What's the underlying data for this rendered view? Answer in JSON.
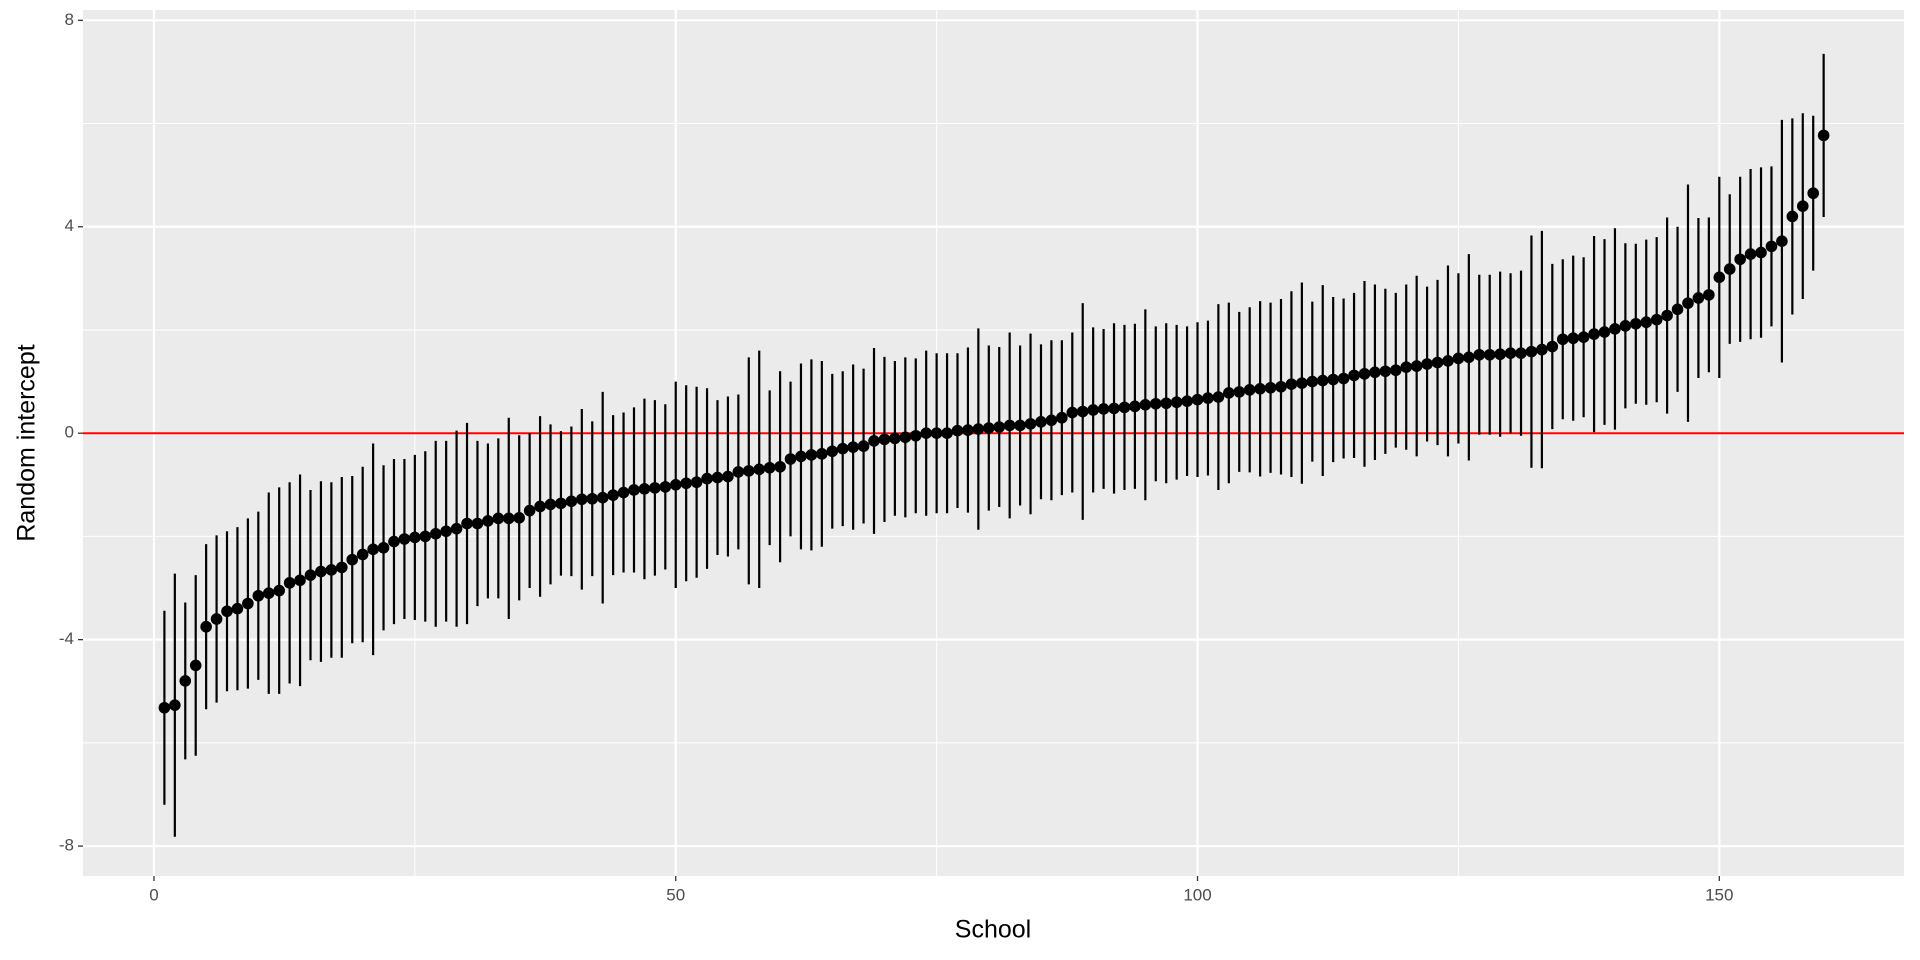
{
  "chart_data": {
    "type": "errorbar",
    "xlabel": "School",
    "ylabel": "Random intercept",
    "x": [
      1,
      2,
      3,
      4,
      5,
      6,
      7,
      8,
      9,
      10,
      11,
      12,
      13,
      14,
      15,
      16,
      17,
      18,
      19,
      20,
      21,
      22,
      23,
      24,
      25,
      26,
      27,
      28,
      29,
      30,
      31,
      32,
      33,
      34,
      35,
      36,
      37,
      38,
      39,
      40,
      41,
      42,
      43,
      44,
      45,
      46,
      47,
      48,
      49,
      50,
      51,
      52,
      53,
      54,
      55,
      56,
      57,
      58,
      59,
      60,
      61,
      62,
      63,
      64,
      65,
      66,
      67,
      68,
      69,
      70,
      71,
      72,
      73,
      74,
      75,
      76,
      77,
      78,
      79,
      80,
      81,
      82,
      83,
      84,
      85,
      86,
      87,
      88,
      89,
      90,
      91,
      92,
      93,
      94,
      95,
      96,
      97,
      98,
      99,
      100,
      101,
      102,
      103,
      104,
      105,
      106,
      107,
      108,
      109,
      110,
      111,
      112,
      113,
      114,
      115,
      116,
      117,
      118,
      119,
      120,
      121,
      122,
      123,
      124,
      125,
      126,
      127,
      128,
      129,
      130,
      131,
      132,
      133,
      134,
      135,
      136,
      137,
      138,
      139,
      140,
      141,
      142,
      143,
      144,
      145,
      146,
      147,
      148,
      149,
      150,
      151,
      152,
      153,
      154,
      155,
      156,
      157,
      158,
      159,
      160
    ],
    "values": [
      -5.32,
      -5.27,
      -4.8,
      -4.5,
      -3.75,
      -3.6,
      -3.45,
      -3.4,
      -3.3,
      -3.15,
      -3.1,
      -3.05,
      -2.9,
      -2.85,
      -2.75,
      -2.68,
      -2.65,
      -2.6,
      -2.45,
      -2.35,
      -2.25,
      -2.22,
      -2.1,
      -2.05,
      -2.02,
      -2.0,
      -1.95,
      -1.9,
      -1.85,
      -1.75,
      -1.75,
      -1.7,
      -1.65,
      -1.65,
      -1.64,
      -1.5,
      -1.42,
      -1.38,
      -1.36,
      -1.32,
      -1.28,
      -1.27,
      -1.25,
      -1.2,
      -1.15,
      -1.1,
      -1.08,
      -1.06,
      -1.04,
      -1.0,
      -0.97,
      -0.95,
      -0.88,
      -0.86,
      -0.84,
      -0.75,
      -0.73,
      -0.7,
      -0.67,
      -0.65,
      -0.5,
      -0.45,
      -0.42,
      -0.4,
      -0.35,
      -0.3,
      -0.27,
      -0.25,
      -0.15,
      -0.12,
      -0.1,
      -0.08,
      -0.05,
      0.0,
      0.0,
      0.0,
      0.05,
      0.06,
      0.08,
      0.1,
      0.12,
      0.15,
      0.15,
      0.18,
      0.22,
      0.25,
      0.3,
      0.4,
      0.42,
      0.45,
      0.47,
      0.48,
      0.5,
      0.52,
      0.55,
      0.57,
      0.58,
      0.6,
      0.62,
      0.65,
      0.68,
      0.7,
      0.78,
      0.8,
      0.84,
      0.86,
      0.88,
      0.9,
      0.95,
      0.97,
      1.0,
      1.02,
      1.04,
      1.06,
      1.12,
      1.15,
      1.18,
      1.2,
      1.22,
      1.28,
      1.3,
      1.34,
      1.37,
      1.4,
      1.45,
      1.47,
      1.52,
      1.52,
      1.53,
      1.55,
      1.55,
      1.58,
      1.62,
      1.68,
      1.82,
      1.84,
      1.86,
      1.92,
      1.96,
      2.02,
      2.08,
      2.12,
      2.15,
      2.2,
      2.28,
      2.4,
      2.52,
      2.62,
      2.68,
      3.02,
      3.18,
      3.37,
      3.47,
      3.5,
      3.62,
      3.72,
      4.2,
      4.4,
      4.65,
      5.77
    ],
    "errors": [
      1.88,
      2.55,
      1.52,
      1.75,
      1.6,
      1.62,
      1.55,
      1.58,
      1.65,
      1.63,
      1.95,
      2.0,
      1.95,
      2.05,
      1.65,
      1.75,
      1.7,
      1.75,
      1.62,
      1.7,
      2.05,
      1.6,
      1.6,
      1.55,
      1.6,
      1.65,
      1.8,
      1.75,
      1.9,
      1.95,
      1.6,
      1.5,
      1.55,
      1.95,
      1.6,
      1.5,
      1.75,
      1.55,
      1.4,
      1.45,
      1.75,
      1.5,
      2.05,
      1.55,
      1.55,
      1.6,
      1.75,
      1.7,
      1.6,
      2.0,
      1.9,
      1.85,
      1.75,
      1.5,
      1.55,
      1.5,
      2.2,
      2.3,
      1.5,
      1.85,
      1.5,
      1.8,
      1.85,
      1.8,
      1.5,
      1.5,
      1.6,
      1.5,
      1.8,
      1.6,
      1.5,
      1.55,
      1.5,
      1.6,
      1.55,
      1.55,
      1.5,
      1.6,
      1.95,
      1.6,
      1.55,
      1.8,
      1.55,
      1.75,
      1.5,
      1.55,
      1.5,
      1.55,
      2.1,
      1.6,
      1.55,
      1.65,
      1.6,
      1.6,
      1.85,
      1.5,
      1.55,
      1.5,
      1.45,
      1.5,
      1.5,
      1.8,
      1.75,
      1.55,
      1.6,
      1.7,
      1.65,
      1.7,
      1.8,
      1.95,
      1.55,
      1.85,
      1.6,
      1.55,
      1.6,
      1.8,
      1.7,
      1.6,
      1.5,
      1.6,
      1.75,
      1.5,
      1.6,
      1.85,
      1.65,
      2.0,
      1.55,
      1.55,
      1.6,
      1.55,
      1.6,
      2.25,
      2.3,
      1.6,
      1.55,
      1.6,
      1.55,
      1.9,
      1.8,
      1.95,
      1.6,
      1.55,
      1.6,
      1.6,
      1.9,
      1.6,
      2.3,
      1.55,
      1.5,
      1.95,
      1.45,
      1.6,
      1.65,
      1.65,
      1.55,
      2.35,
      1.9,
      1.8,
      1.5,
      1.58
    ],
    "color": "#000000",
    "xlim": [
      -6.8,
      167.7
    ],
    "ylim": [
      -8.58,
      8.2
    ],
    "xticks": [
      0,
      50,
      100,
      150
    ],
    "yticks": [
      -8,
      -4,
      0,
      4,
      8
    ],
    "x_minor_ticks": [
      25,
      75,
      125
    ],
    "y_minor_ticks": [
      -6,
      -2,
      2,
      6
    ],
    "grid": true,
    "hline": 0,
    "hline_color": "#ff0000"
  }
}
